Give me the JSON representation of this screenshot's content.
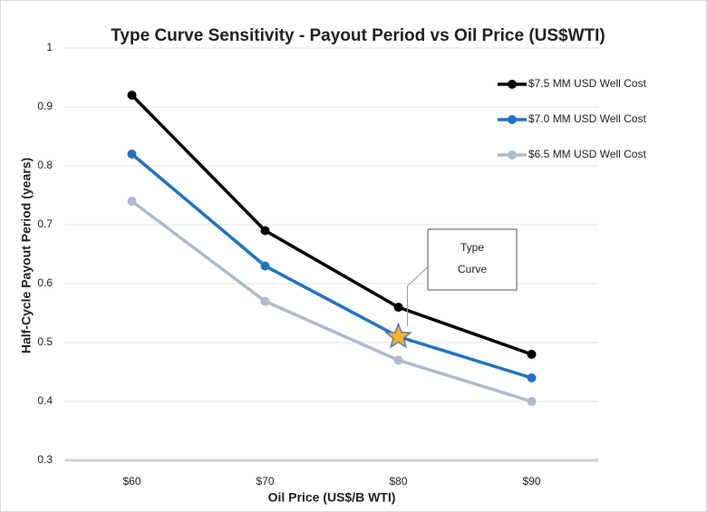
{
  "chart_data": {
    "type": "line",
    "title": "Type Curve Sensitivity - Payout Period vs Oil Price (US$WTI)",
    "x_label": "Oil Price (US$/B WTI)",
    "y_label": "Half-Cycle Payout Period (years)",
    "categories": [
      "$60",
      "$70",
      "$80",
      "$90"
    ],
    "series": [
      {
        "name": "$7.5 MM USD Well Cost",
        "color": "#000000",
        "values": [
          0.92,
          0.69,
          0.56,
          0.48
        ]
      },
      {
        "name": "$7.0 MM USD Well Cost",
        "color": "#1f73c4",
        "values": [
          0.82,
          0.63,
          0.51,
          0.44
        ]
      },
      {
        "name": "$6.5 MM USD Well Cost",
        "color": "#afbacb",
        "values": [
          0.74,
          0.57,
          0.47,
          0.4
        ]
      }
    ],
    "ylim": [
      0.3,
      1
    ],
    "yticks": [
      0.3,
      0.4,
      0.5,
      0.6,
      0.7,
      0.8,
      0.9,
      1
    ],
    "grid": true,
    "legend": "upper right",
    "annotation": {
      "lines": [
        "Type",
        "Curve"
      ],
      "series": 1,
      "index": 2
    }
  }
}
